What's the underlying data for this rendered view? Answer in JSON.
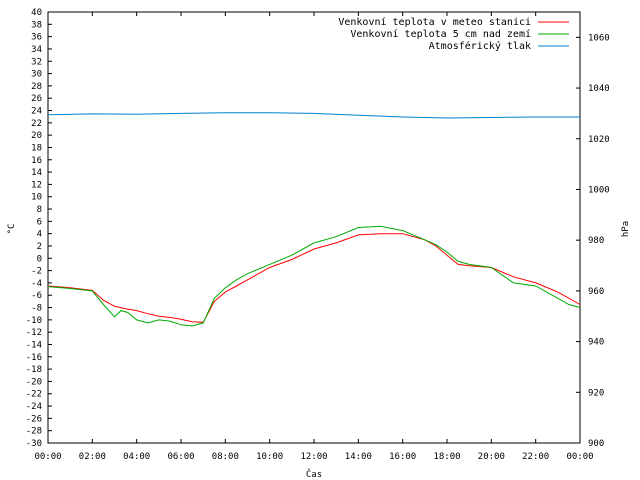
{
  "chart_data": {
    "type": "line",
    "xlabel": "Čas",
    "ylabel_left": "°C",
    "ylabel_right": "hPa",
    "x_range": [
      "00:00",
      "00:00"
    ],
    "x_ticks": [
      "00:00",
      "02:00",
      "04:00",
      "06:00",
      "08:00",
      "10:00",
      "12:00",
      "14:00",
      "16:00",
      "18:00",
      "20:00",
      "22:00",
      "00:00"
    ],
    "y_left": {
      "min": -30,
      "max": 40,
      "step": 2
    },
    "y_right": {
      "min": 900,
      "max": 1070,
      "ticks": [
        900,
        920,
        940,
        960,
        980,
        1000,
        1020,
        1040,
        1060
      ]
    },
    "legend_position": "top-right",
    "grid": false,
    "series": [
      {
        "name": "Venkovní teplota v meteo stanici",
        "color": "#ff0000",
        "axis": "left",
        "x": [
          0,
          1,
          2,
          2.5,
          3,
          3.5,
          4,
          4.5,
          5,
          5.5,
          6,
          6.5,
          7,
          7.5,
          8,
          8.5,
          9,
          10,
          11,
          12,
          13,
          14,
          15,
          16,
          17,
          17.5,
          18,
          18.5,
          19,
          20,
          21,
          22,
          23,
          24
        ],
        "values": [
          -4.5,
          -4.8,
          -5.2,
          -6.8,
          -7.8,
          -8.2,
          -8.5,
          -9,
          -9.4,
          -9.6,
          -9.9,
          -10.3,
          -10.4,
          -7,
          -5.5,
          -4.5,
          -3.5,
          -1.5,
          -0.2,
          1.5,
          2.5,
          3.8,
          4,
          4,
          3,
          2,
          0.5,
          -1,
          -1.2,
          -1.5,
          -3,
          -4,
          -5.5,
          -7.5
        ]
      },
      {
        "name": "Venkovní teplota 5 cm nad zemí",
        "color": "#00aa00",
        "axis": "left",
        "x": [
          0,
          1,
          2,
          2.5,
          3,
          3.3,
          3.6,
          4,
          4.5,
          5,
          5.5,
          6,
          6.5,
          7,
          7.5,
          8,
          8.5,
          9,
          10,
          11,
          12,
          13,
          14,
          15,
          16,
          17,
          17.5,
          18,
          18.5,
          19,
          20,
          21,
          22,
          23,
          23.5,
          24
        ],
        "values": [
          -4.6,
          -4.9,
          -5.3,
          -7.5,
          -9.5,
          -8.5,
          -8.8,
          -10,
          -10.5,
          -10,
          -10.2,
          -10.8,
          -11,
          -10.5,
          -6.5,
          -4.8,
          -3.5,
          -2.5,
          -1,
          0.5,
          2.5,
          3.5,
          5,
          5.2,
          4.5,
          3,
          2.2,
          1,
          -0.5,
          -1,
          -1.5,
          -4,
          -4.5,
          -6.5,
          -7.5,
          -8
        ]
      },
      {
        "name": "Atmosférický tlak",
        "color": "#0080cc",
        "axis": "right",
        "x": [
          0,
          2,
          4,
          6,
          8,
          10,
          12,
          14,
          16,
          18,
          20,
          22,
          24
        ],
        "values": [
          1029.5,
          1029.8,
          1029.7,
          1030,
          1030.3,
          1030.3,
          1030,
          1029.3,
          1028.6,
          1028.2,
          1028.4,
          1028.6,
          1028.6
        ]
      }
    ]
  }
}
